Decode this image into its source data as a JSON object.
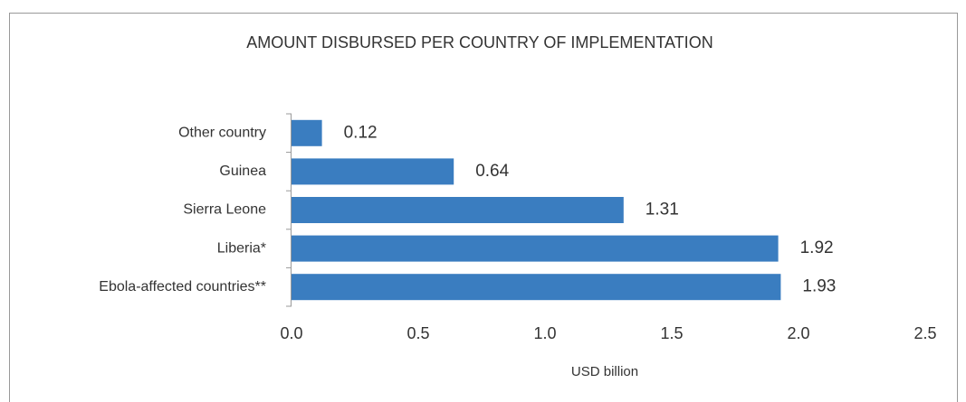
{
  "chart_data": {
    "type": "bar",
    "orientation": "horizontal",
    "title": "AMOUNT DISBURSED PER COUNTRY OF IMPLEMENTATION",
    "categories": [
      "Other country",
      "Guinea",
      "Sierra Leone",
      "Liberia*",
      "Ebola-affected countries**"
    ],
    "values": [
      0.12,
      0.64,
      1.31,
      1.92,
      1.93
    ],
    "color": "#3a7dc0",
    "xlim": [
      0,
      2.5
    ],
    "xticks": [
      {
        "value": 0,
        "label": "0.0"
      },
      0.5,
      {
        "value": 1,
        "label": "1.0"
      },
      1.5,
      {
        "value": 2,
        "label": "2.0"
      },
      2.5
    ],
    "xlabel": "USD billion",
    "grid": false
  }
}
